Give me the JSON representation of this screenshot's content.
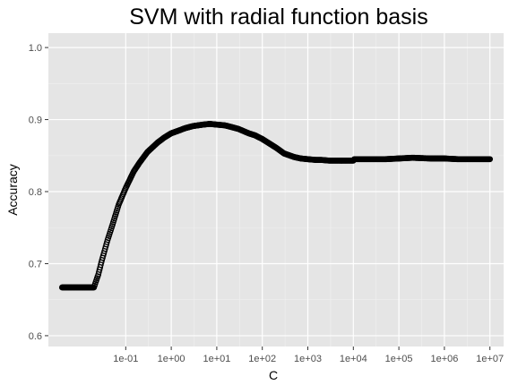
{
  "chart_data": {
    "type": "scatter",
    "title": "SVM with radial function basis",
    "xlabel": "C",
    "ylabel": "Accuracy",
    "x_scale": "log10",
    "xlim": [
      0.002,
      20000000
    ],
    "ylim": [
      0.585,
      1.02
    ],
    "x_ticks": [
      0.1,
      1,
      10,
      100,
      1000,
      10000,
      100000,
      1000000,
      10000000
    ],
    "x_tick_labels": [
      "1e-01",
      "1e+00",
      "1e+01",
      "1e+02",
      "1e+03",
      "1e+04",
      "1e+05",
      "1e+06",
      "1e+07"
    ],
    "y_ticks": [
      0.6,
      0.7,
      0.8,
      0.9,
      1.0
    ],
    "y_tick_labels": [
      "0.6",
      "0.7",
      "0.8",
      "0.9",
      "1.0"
    ],
    "grid": true,
    "colors": {
      "panel": "#e5e5e5",
      "grid_major": "#ffffff",
      "grid_minor": "#f0f0f0",
      "points": "#000000"
    },
    "series": [
      {
        "x": [
          0.004,
          0.006,
          0.01,
          0.015,
          0.02,
          0.025,
          0.03,
          0.04,
          0.05,
          0.07,
          0.1,
          0.15,
          0.2,
          0.3,
          0.5,
          0.7,
          1,
          1.5,
          2,
          3,
          5,
          7,
          10,
          15,
          20,
          30,
          50,
          70,
          100,
          150,
          200,
          300,
          500,
          700,
          1000,
          1500,
          2000,
          3000,
          5000,
          7000,
          10000,
          10500,
          20000,
          50000,
          100000,
          200000,
          500000,
          1000000,
          2000000,
          5000000,
          10000000
        ],
        "y": [
          0.667,
          0.667,
          0.667,
          0.667,
          0.667,
          0.685,
          0.705,
          0.733,
          0.752,
          0.782,
          0.805,
          0.828,
          0.84,
          0.855,
          0.868,
          0.875,
          0.881,
          0.885,
          0.888,
          0.891,
          0.893,
          0.894,
          0.893,
          0.892,
          0.89,
          0.887,
          0.881,
          0.878,
          0.873,
          0.866,
          0.861,
          0.853,
          0.848,
          0.846,
          0.845,
          0.844,
          0.844,
          0.843,
          0.843,
          0.843,
          0.843,
          0.845,
          0.845,
          0.845,
          0.846,
          0.847,
          0.846,
          0.846,
          0.845,
          0.845,
          0.845
        ]
      }
    ]
  }
}
